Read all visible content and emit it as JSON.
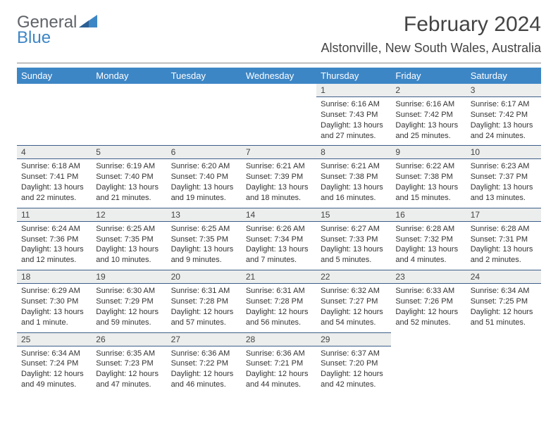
{
  "logo": {
    "text1": "General",
    "text2": "Blue"
  },
  "title": {
    "month": "February 2024",
    "location": "Alstonville, New South Wales, Australia"
  },
  "colors": {
    "header_bg": "#3d86c6",
    "header_fg": "#ffffff",
    "daynum_bg": "#eceded",
    "rule": "#3d5f88",
    "logo_gray": "#5f6368",
    "logo_blue": "#3d86c6"
  },
  "weekdays": [
    "Sunday",
    "Monday",
    "Tuesday",
    "Wednesday",
    "Thursday",
    "Friday",
    "Saturday"
  ],
  "weeks": [
    [
      null,
      null,
      null,
      null,
      {
        "n": "1",
        "sr": "6:16 AM",
        "ss": "7:43 PM",
        "dl": "13 hours and 27 minutes."
      },
      {
        "n": "2",
        "sr": "6:16 AM",
        "ss": "7:42 PM",
        "dl": "13 hours and 25 minutes."
      },
      {
        "n": "3",
        "sr": "6:17 AM",
        "ss": "7:42 PM",
        "dl": "13 hours and 24 minutes."
      }
    ],
    [
      {
        "n": "4",
        "sr": "6:18 AM",
        "ss": "7:41 PM",
        "dl": "13 hours and 22 minutes."
      },
      {
        "n": "5",
        "sr": "6:19 AM",
        "ss": "7:40 PM",
        "dl": "13 hours and 21 minutes."
      },
      {
        "n": "6",
        "sr": "6:20 AM",
        "ss": "7:40 PM",
        "dl": "13 hours and 19 minutes."
      },
      {
        "n": "7",
        "sr": "6:21 AM",
        "ss": "7:39 PM",
        "dl": "13 hours and 18 minutes."
      },
      {
        "n": "8",
        "sr": "6:21 AM",
        "ss": "7:38 PM",
        "dl": "13 hours and 16 minutes."
      },
      {
        "n": "9",
        "sr": "6:22 AM",
        "ss": "7:38 PM",
        "dl": "13 hours and 15 minutes."
      },
      {
        "n": "10",
        "sr": "6:23 AM",
        "ss": "7:37 PM",
        "dl": "13 hours and 13 minutes."
      }
    ],
    [
      {
        "n": "11",
        "sr": "6:24 AM",
        "ss": "7:36 PM",
        "dl": "13 hours and 12 minutes."
      },
      {
        "n": "12",
        "sr": "6:25 AM",
        "ss": "7:35 PM",
        "dl": "13 hours and 10 minutes."
      },
      {
        "n": "13",
        "sr": "6:25 AM",
        "ss": "7:35 PM",
        "dl": "13 hours and 9 minutes."
      },
      {
        "n": "14",
        "sr": "6:26 AM",
        "ss": "7:34 PM",
        "dl": "13 hours and 7 minutes."
      },
      {
        "n": "15",
        "sr": "6:27 AM",
        "ss": "7:33 PM",
        "dl": "13 hours and 5 minutes."
      },
      {
        "n": "16",
        "sr": "6:28 AM",
        "ss": "7:32 PM",
        "dl": "13 hours and 4 minutes."
      },
      {
        "n": "17",
        "sr": "6:28 AM",
        "ss": "7:31 PM",
        "dl": "13 hours and 2 minutes."
      }
    ],
    [
      {
        "n": "18",
        "sr": "6:29 AM",
        "ss": "7:30 PM",
        "dl": "13 hours and 1 minute."
      },
      {
        "n": "19",
        "sr": "6:30 AM",
        "ss": "7:29 PM",
        "dl": "12 hours and 59 minutes."
      },
      {
        "n": "20",
        "sr": "6:31 AM",
        "ss": "7:28 PM",
        "dl": "12 hours and 57 minutes."
      },
      {
        "n": "21",
        "sr": "6:31 AM",
        "ss": "7:28 PM",
        "dl": "12 hours and 56 minutes."
      },
      {
        "n": "22",
        "sr": "6:32 AM",
        "ss": "7:27 PM",
        "dl": "12 hours and 54 minutes."
      },
      {
        "n": "23",
        "sr": "6:33 AM",
        "ss": "7:26 PM",
        "dl": "12 hours and 52 minutes."
      },
      {
        "n": "24",
        "sr": "6:34 AM",
        "ss": "7:25 PM",
        "dl": "12 hours and 51 minutes."
      }
    ],
    [
      {
        "n": "25",
        "sr": "6:34 AM",
        "ss": "7:24 PM",
        "dl": "12 hours and 49 minutes."
      },
      {
        "n": "26",
        "sr": "6:35 AM",
        "ss": "7:23 PM",
        "dl": "12 hours and 47 minutes."
      },
      {
        "n": "27",
        "sr": "6:36 AM",
        "ss": "7:22 PM",
        "dl": "12 hours and 46 minutes."
      },
      {
        "n": "28",
        "sr": "6:36 AM",
        "ss": "7:21 PM",
        "dl": "12 hours and 44 minutes."
      },
      {
        "n": "29",
        "sr": "6:37 AM",
        "ss": "7:20 PM",
        "dl": "12 hours and 42 minutes."
      },
      null,
      null
    ]
  ],
  "labels": {
    "sunrise": "Sunrise: ",
    "sunset": "Sunset: ",
    "daylight": "Daylight: "
  }
}
